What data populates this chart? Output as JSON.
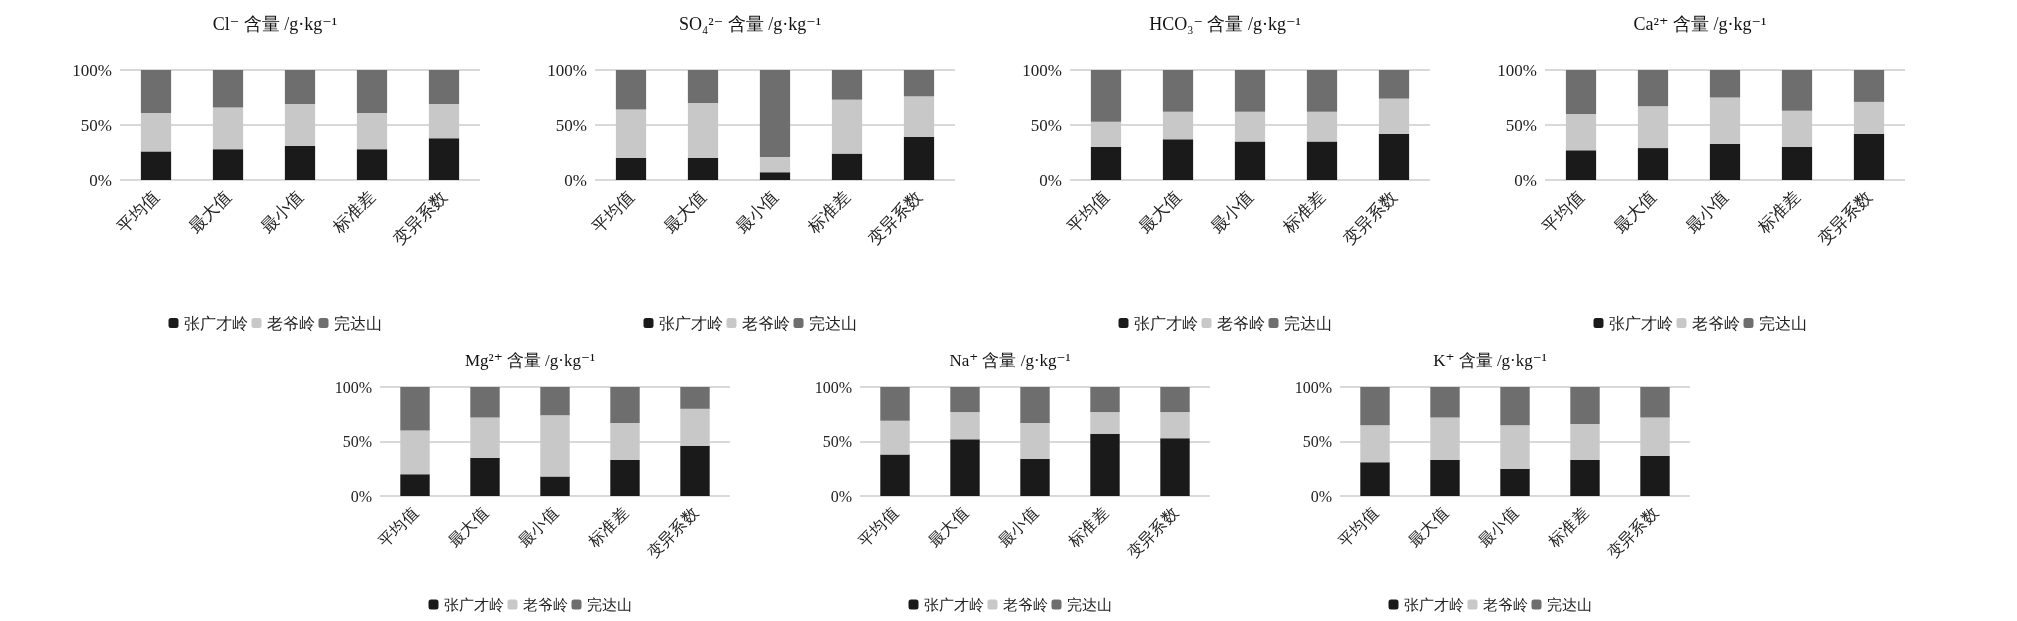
{
  "chart_data": [
    {
      "type": "bar",
      "stacked": true,
      "title": "Cl⁻ 含量 /g·kg⁻¹",
      "categories": [
        "平均值",
        "最大值",
        "最小值",
        "标准差",
        "变异系数"
      ],
      "ylim": [
        0,
        100
      ],
      "yticks": [
        {
          "value": 0,
          "label": "0%"
        },
        {
          "value": 50,
          "label": "50%"
        },
        {
          "value": 100,
          "label": "100%"
        }
      ],
      "grid": "y",
      "legend": "bottom",
      "series": [
        {
          "name": "张广才岭",
          "color": "#1a1a1a",
          "values": [
            26,
            28,
            31,
            28,
            38
          ]
        },
        {
          "name": "老爷岭",
          "color": "#c8c8c8",
          "values": [
            35,
            38,
            38,
            33,
            31
          ]
        },
        {
          "name": "完达山",
          "color": "#6e6e6e",
          "values": [
            39,
            34,
            31,
            39,
            31
          ]
        }
      ]
    },
    {
      "type": "bar",
      "stacked": true,
      "title": "SO₄²⁻ 含量 /g·kg⁻¹",
      "categories": [
        "平均值",
        "最大值",
        "最小值",
        "标准差",
        "变异系数"
      ],
      "ylim": [
        0,
        100
      ],
      "yticks": [
        {
          "value": 0,
          "label": "0%"
        },
        {
          "value": 50,
          "label": "50%"
        },
        {
          "value": 100,
          "label": "100%"
        }
      ],
      "grid": "y",
      "legend": "bottom",
      "series": [
        {
          "name": "张广才岭",
          "color": "#1a1a1a",
          "values": [
            20,
            20,
            7,
            24,
            39
          ]
        },
        {
          "name": "老爷岭",
          "color": "#c8c8c8",
          "values": [
            44,
            50,
            14,
            49,
            37
          ]
        },
        {
          "name": "完达山",
          "color": "#6e6e6e",
          "values": [
            36,
            30,
            79,
            27,
            24
          ]
        }
      ]
    },
    {
      "type": "bar",
      "stacked": true,
      "title": "HCO₃⁻ 含量 /g·kg⁻¹",
      "categories": [
        "平均值",
        "最大值",
        "最小值",
        "标准差",
        "变异系数"
      ],
      "ylim": [
        0,
        100
      ],
      "yticks": [
        {
          "value": 0,
          "label": "0%"
        },
        {
          "value": 50,
          "label": "50%"
        },
        {
          "value": 100,
          "label": "100%"
        }
      ],
      "grid": "y",
      "legend": "bottom",
      "series": [
        {
          "name": "张广才岭",
          "color": "#1a1a1a",
          "values": [
            30,
            37,
            35,
            35,
            42
          ]
        },
        {
          "name": "老爷岭",
          "color": "#c8c8c8",
          "values": [
            23,
            25,
            27,
            27,
            32
          ]
        },
        {
          "name": "完达山",
          "color": "#6e6e6e",
          "values": [
            47,
            38,
            38,
            38,
            26
          ]
        }
      ]
    },
    {
      "type": "bar",
      "stacked": true,
      "title": "Ca²⁺ 含量 /g·kg⁻¹",
      "categories": [
        "平均值",
        "最大值",
        "最小值",
        "标准差",
        "变异系数"
      ],
      "ylim": [
        0,
        100
      ],
      "yticks": [
        {
          "value": 0,
          "label": "0%"
        },
        {
          "value": 50,
          "label": "50%"
        },
        {
          "value": 100,
          "label": "100%"
        }
      ],
      "grid": "y",
      "legend": "bottom",
      "series": [
        {
          "name": "张广才岭",
          "color": "#1a1a1a",
          "values": [
            27,
            29,
            33,
            30,
            42
          ]
        },
        {
          "name": "老爷岭",
          "color": "#c8c8c8",
          "values": [
            33,
            38,
            42,
            33,
            29
          ]
        },
        {
          "name": "完达山",
          "color": "#6e6e6e",
          "values": [
            40,
            33,
            25,
            37,
            29
          ]
        }
      ]
    },
    {
      "type": "bar",
      "stacked": true,
      "title": "Mg²⁺ 含量 /g·kg⁻¹",
      "categories": [
        "平均值",
        "最大值",
        "最小值",
        "标准差",
        "变异系数"
      ],
      "ylim": [
        0,
        100
      ],
      "yticks": [
        {
          "value": 0,
          "label": "0%"
        },
        {
          "value": 50,
          "label": "50%"
        },
        {
          "value": 100,
          "label": "100%"
        }
      ],
      "grid": "y",
      "legend": "bottom",
      "series": [
        {
          "name": "张广才岭",
          "color": "#1a1a1a",
          "values": [
            20,
            35,
            18,
            33,
            46
          ]
        },
        {
          "name": "老爷岭",
          "color": "#c8c8c8",
          "values": [
            40,
            37,
            56,
            34,
            34
          ]
        },
        {
          "name": "完达山",
          "color": "#6e6e6e",
          "values": [
            40,
            28,
            26,
            33,
            20
          ]
        }
      ]
    },
    {
      "type": "bar",
      "stacked": true,
      "title": "Na⁺ 含量 /g·kg⁻¹",
      "categories": [
        "平均值",
        "最大值",
        "最小值",
        "标准差",
        "变异系数"
      ],
      "ylim": [
        0,
        100
      ],
      "yticks": [
        {
          "value": 0,
          "label": "0%"
        },
        {
          "value": 50,
          "label": "50%"
        },
        {
          "value": 100,
          "label": "100%"
        }
      ],
      "grid": "y",
      "legend": "bottom",
      "series": [
        {
          "name": "张广才岭",
          "color": "#1a1a1a",
          "values": [
            38,
            52,
            34,
            57,
            53
          ]
        },
        {
          "name": "老爷岭",
          "color": "#c8c8c8",
          "values": [
            31,
            25,
            33,
            20,
            24
          ]
        },
        {
          "name": "完达山",
          "color": "#6e6e6e",
          "values": [
            31,
            23,
            33,
            23,
            23
          ]
        }
      ]
    },
    {
      "type": "bar",
      "stacked": true,
      "title": "K⁺ 含量 /g·kg⁻¹",
      "categories": [
        "平均值",
        "最大值",
        "最小值",
        "标准差",
        "变异系数"
      ],
      "ylim": [
        0,
        100
      ],
      "yticks": [
        {
          "value": 0,
          "label": "0%"
        },
        {
          "value": 50,
          "label": "50%"
        },
        {
          "value": 100,
          "label": "100%"
        }
      ],
      "grid": "y",
      "legend": "bottom",
      "series": [
        {
          "name": "张广才岭",
          "color": "#1a1a1a",
          "values": [
            31,
            33,
            25,
            33,
            37
          ]
        },
        {
          "name": "老爷岭",
          "color": "#c8c8c8",
          "values": [
            34,
            39,
            40,
            33,
            35
          ]
        },
        {
          "name": "完达山",
          "color": "#6e6e6e",
          "values": [
            35,
            28,
            35,
            34,
            28
          ]
        }
      ]
    }
  ]
}
